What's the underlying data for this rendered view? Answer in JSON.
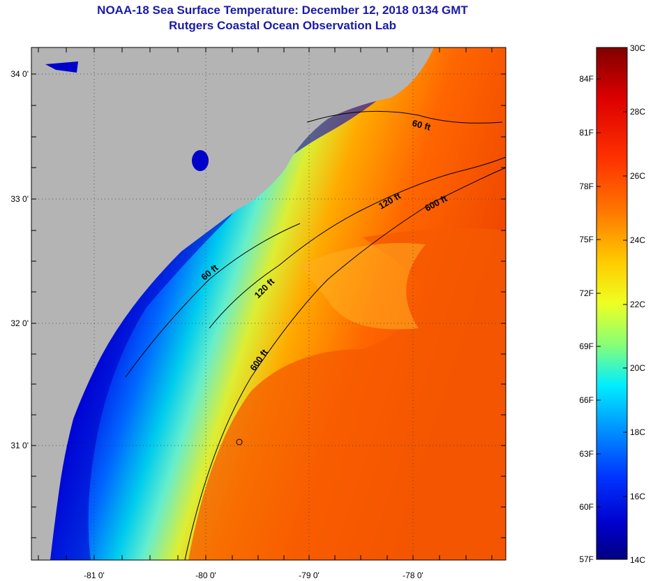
{
  "header": {
    "title": "NOAA-18 Sea Surface Temperature:  December 12, 2018 0134 GMT",
    "subtitle": "Rutgers Coastal Ocean Observation Lab"
  },
  "map": {
    "lon_labels": [
      "-81 0'",
      "-80 0'",
      "-79 0'",
      "-78 0'"
    ],
    "lat_labels": [
      "34 0'",
      "33 0'",
      "32 0'",
      "31 0'"
    ],
    "contours": [
      {
        "label": "60 ft"
      },
      {
        "label": "120 ft"
      },
      {
        "label": "600 ft"
      },
      {
        "label": "60 ft"
      },
      {
        "label": "120 ft"
      },
      {
        "label": "600 ft"
      }
    ]
  },
  "colorbar": {
    "celsius": [
      "30C",
      "28C",
      "26C",
      "24C",
      "22C",
      "20C",
      "18C",
      "16C",
      "14C"
    ],
    "fahrenheit": [
      "84F",
      "81F",
      "78F",
      "75F",
      "72F",
      "69F",
      "66F",
      "63F",
      "60F",
      "57F"
    ]
  },
  "colors": {
    "land": "#b4b4b4",
    "title": "#1a1aa6"
  }
}
